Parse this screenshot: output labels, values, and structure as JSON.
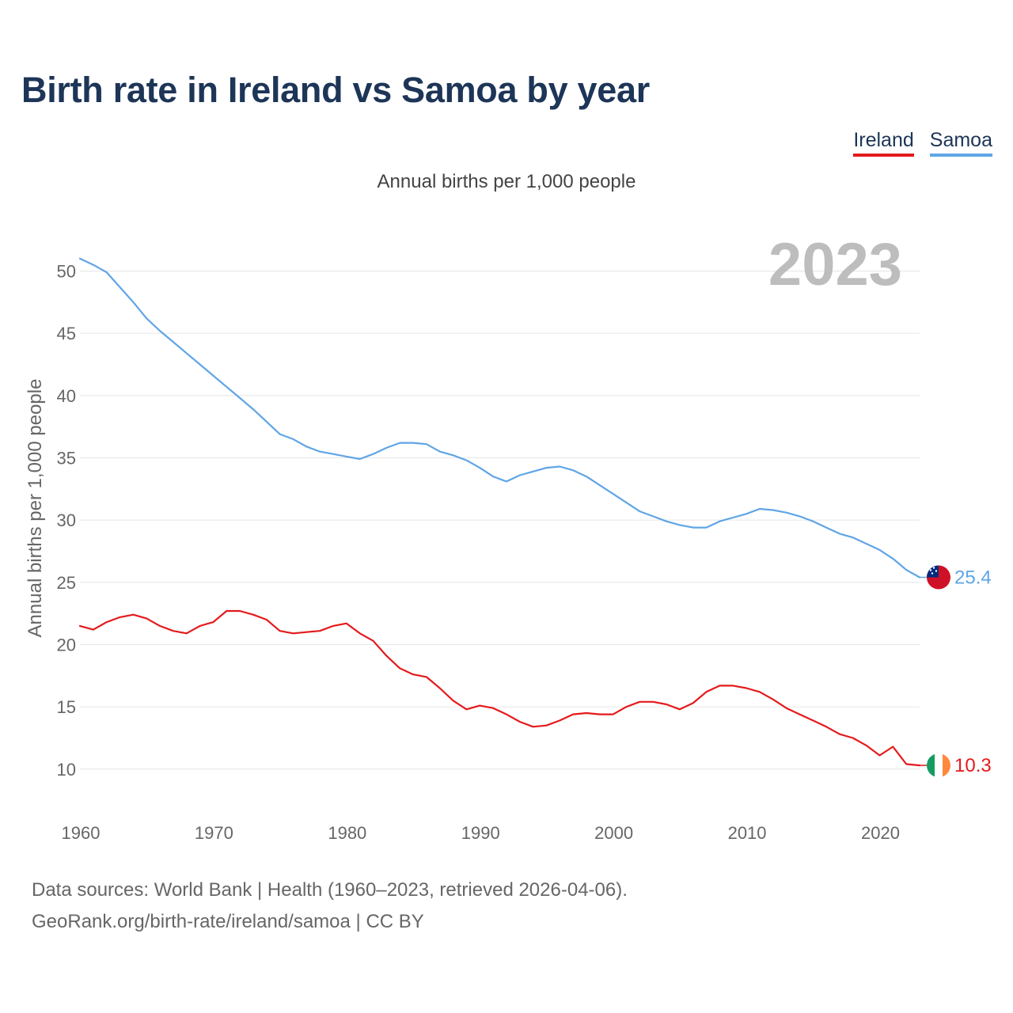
{
  "header": {
    "title": "Birth rate in Ireland vs Samoa by year",
    "subtitle": "Annual births per 1,000 people"
  },
  "legend": [
    {
      "name": "Ireland",
      "color": "#e41a1c"
    },
    {
      "name": "Samoa",
      "color": "#5fa5e6"
    }
  ],
  "chart_data": {
    "type": "line",
    "title": "Birth rate in Ireland vs Samoa by year",
    "subtitle": "Annual births per 1,000 people",
    "ylabel": "Annual births per 1,000 people",
    "xlabel": "",
    "year_label": "2023",
    "x": [
      1960,
      1961,
      1962,
      1963,
      1964,
      1965,
      1966,
      1967,
      1968,
      1969,
      1970,
      1971,
      1972,
      1973,
      1974,
      1975,
      1976,
      1977,
      1978,
      1979,
      1980,
      1981,
      1982,
      1983,
      1984,
      1985,
      1986,
      1987,
      1988,
      1989,
      1990,
      1991,
      1992,
      1993,
      1994,
      1995,
      1996,
      1997,
      1998,
      1999,
      2000,
      2001,
      2002,
      2003,
      2004,
      2005,
      2006,
      2007,
      2008,
      2009,
      2010,
      2011,
      2012,
      2013,
      2014,
      2015,
      2016,
      2017,
      2018,
      2019,
      2020,
      2021,
      2022,
      2023
    ],
    "xlim": [
      1960,
      2023
    ],
    "ylim": [
      7,
      52
    ],
    "xticks": [
      1960,
      1970,
      1980,
      1990,
      2000,
      2010,
      2020
    ],
    "yticks": [
      10,
      15,
      20,
      25,
      30,
      35,
      40,
      45,
      50
    ],
    "grid": true,
    "series": [
      {
        "name": "Samoa",
        "color": "#5fa5e6",
        "end_label": "25.4",
        "values": [
          51.0,
          50.5,
          49.9,
          48.7,
          47.5,
          46.2,
          45.2,
          44.3,
          43.4,
          42.5,
          41.6,
          40.7,
          39.8,
          38.9,
          37.9,
          36.9,
          36.5,
          35.9,
          35.5,
          35.3,
          35.1,
          34.9,
          35.3,
          35.8,
          36.2,
          36.2,
          36.1,
          35.5,
          35.2,
          34.8,
          34.2,
          33.5,
          33.1,
          33.6,
          33.9,
          34.2,
          34.3,
          34.0,
          33.5,
          32.8,
          32.1,
          31.4,
          30.7,
          30.3,
          29.9,
          29.6,
          29.4,
          29.4,
          29.9,
          30.2,
          30.5,
          30.9,
          30.8,
          30.6,
          30.3,
          29.9,
          29.4,
          28.9,
          28.6,
          28.1,
          27.6,
          26.9,
          26.0,
          25.4
        ]
      },
      {
        "name": "Ireland",
        "color": "#e41a1c",
        "end_label": "10.3",
        "values": [
          21.5,
          21.2,
          21.8,
          22.2,
          22.4,
          22.1,
          21.5,
          21.1,
          20.9,
          21.5,
          21.8,
          22.7,
          22.7,
          22.4,
          22.0,
          21.1,
          20.9,
          21.0,
          21.1,
          21.5,
          21.7,
          20.9,
          20.3,
          19.1,
          18.1,
          17.6,
          17.4,
          16.5,
          15.5,
          14.8,
          15.1,
          14.9,
          14.4,
          13.8,
          13.4,
          13.5,
          13.9,
          14.4,
          14.5,
          14.4,
          14.4,
          15.0,
          15.4,
          15.4,
          15.2,
          14.8,
          15.3,
          16.2,
          16.7,
          16.7,
          16.5,
          16.2,
          15.6,
          14.9,
          14.4,
          13.9,
          13.4,
          12.8,
          12.5,
          11.9,
          11.1,
          11.8,
          10.4,
          10.3
        ]
      }
    ]
  },
  "footer": {
    "sources": "Data sources: World Bank | Health (1960–2023, retrieved 2026-04-06).",
    "credit": "GeoRank.org/birth-rate/ireland/samoa | CC BY"
  }
}
